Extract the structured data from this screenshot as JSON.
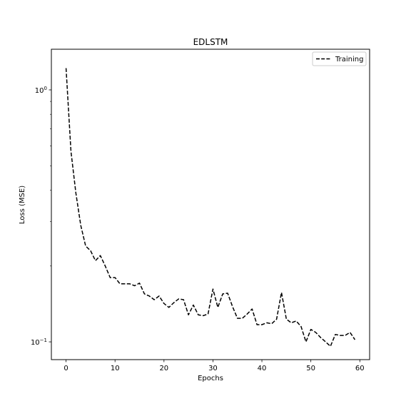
{
  "chart_data": {
    "type": "line",
    "title": "EDLSTM",
    "xlabel": "Epochs",
    "ylabel": "Loss (MSE)",
    "xlim": [
      -3,
      62
    ],
    "ylim": [
      0.085,
      1.45
    ],
    "yscale": "log",
    "grid": false,
    "legend_position": "upper-right",
    "x_ticks": [
      0,
      10,
      20,
      30,
      40,
      50,
      60
    ],
    "y_major_ticks": [
      0.1,
      1
    ],
    "y_major_tick_labels": [
      "10^-1",
      "10^0"
    ],
    "y_minor_ticks": [
      0.2,
      0.3,
      0.4,
      0.5,
      0.6,
      0.7,
      0.8,
      0.9
    ],
    "series": [
      {
        "name": "Training",
        "color": "#000000",
        "line_style": "dashed",
        "x": [
          0,
          1,
          2,
          3,
          4,
          5,
          6,
          7,
          8,
          9,
          10,
          11,
          12,
          13,
          14,
          15,
          16,
          17,
          18,
          19,
          20,
          21,
          22,
          23,
          24,
          25,
          26,
          27,
          28,
          29,
          30,
          31,
          32,
          33,
          34,
          35,
          36,
          37,
          38,
          39,
          40,
          41,
          42,
          43,
          44,
          45,
          46,
          47,
          48,
          49,
          50,
          51,
          52,
          53,
          54,
          55,
          56,
          57,
          58,
          59
        ],
        "values": [
          1.22,
          0.57,
          0.39,
          0.29,
          0.24,
          0.23,
          0.21,
          0.22,
          0.2,
          0.18,
          0.18,
          0.17,
          0.17,
          0.17,
          0.167,
          0.171,
          0.155,
          0.152,
          0.147,
          0.152,
          0.142,
          0.137,
          0.143,
          0.148,
          0.147,
          0.128,
          0.14,
          0.128,
          0.127,
          0.129,
          0.162,
          0.137,
          0.155,
          0.156,
          0.138,
          0.124,
          0.124,
          0.129,
          0.135,
          0.117,
          0.117,
          0.119,
          0.118,
          0.123,
          0.157,
          0.123,
          0.119,
          0.121,
          0.115,
          0.1,
          0.112,
          0.109,
          0.104,
          0.1,
          0.096,
          0.107,
          0.106,
          0.106,
          0.109,
          0.102
        ]
      }
    ]
  }
}
